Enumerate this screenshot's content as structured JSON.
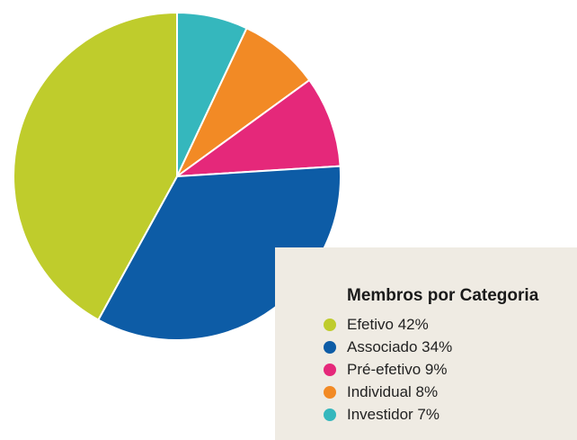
{
  "chart_data": {
    "type": "pie",
    "title": "Membros por Categoria",
    "legend_position": "bottom-right",
    "slices": [
      {
        "label": "Efetivo 42%",
        "value": 42,
        "color": "#bfcc2c"
      },
      {
        "label": "Associado 34%",
        "value": 34,
        "color": "#0d5ca6"
      },
      {
        "label": "Pré-efetivo 9%",
        "value": 9,
        "color": "#e5287a"
      },
      {
        "label": "Individual 8%",
        "value": 8,
        "color": "#f28a25"
      },
      {
        "label": "Investidor 7%",
        "value": 7,
        "color": "#35b7bd"
      }
    ]
  }
}
